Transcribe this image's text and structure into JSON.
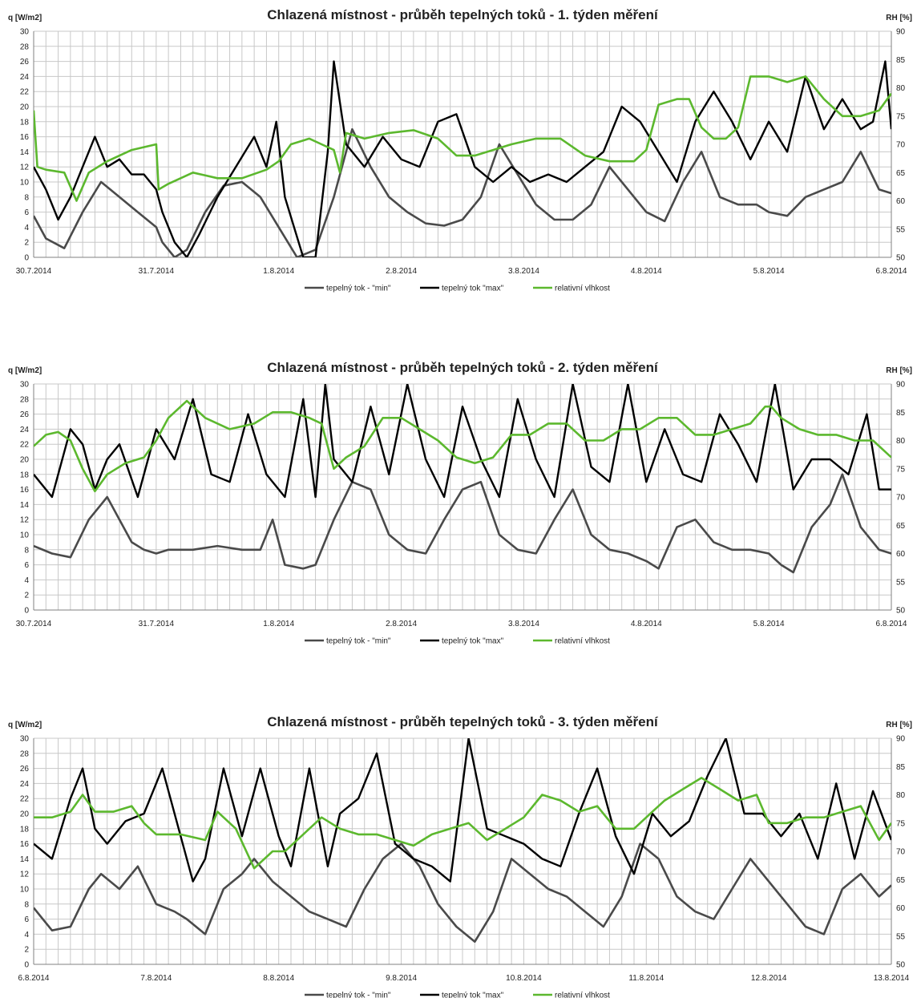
{
  "charts_meta": {
    "colors": {
      "min": "#4a4a4a",
      "max": "#000000",
      "rh": "#5cb82e",
      "grid": "#c8c8c8"
    }
  },
  "chart_data": [
    {
      "type": "line",
      "title": "Chlazená místnost - průběh tepelných toků - 1. týden měření",
      "ylabel": "q [W/m2]",
      "y2label": "RH [%]",
      "ylim": [
        0,
        30
      ],
      "y2lim": [
        50,
        90
      ],
      "yticks": [
        "0",
        "2",
        "4",
        "6",
        "8",
        "10",
        "12",
        "14",
        "16",
        "18",
        "20",
        "22",
        "24",
        "26",
        "28",
        "30"
      ],
      "y2ticks": [
        "50",
        "55",
        "60",
        "65",
        "70",
        "75",
        "80",
        "85",
        "90"
      ],
      "xlim": [
        0,
        7
      ],
      "xticks": [
        "30.7.2014",
        "31.7.2014",
        "1.8.2014",
        "2.8.2014",
        "3.8.2014",
        "4.8.2014",
        "5.8.2014",
        "6.8.2014"
      ],
      "grid": true,
      "legend": "bottom",
      "series": [
        {
          "name": "tepelný tok - \"min\"",
          "axis": "left",
          "x": [
            0,
            0.1,
            0.25,
            0.4,
            0.55,
            0.7,
            0.85,
            1.0,
            1.05,
            1.15,
            1.25,
            1.4,
            1.55,
            1.7,
            1.85,
            2.0,
            2.15,
            2.3,
            2.45,
            2.6,
            2.75,
            2.9,
            3.05,
            3.2,
            3.35,
            3.5,
            3.65,
            3.8,
            3.95,
            4.1,
            4.25,
            4.4,
            4.55,
            4.7,
            4.85,
            5.0,
            5.15,
            5.3,
            5.45,
            5.6,
            5.75,
            5.9,
            6.0,
            6.15,
            6.3,
            6.45,
            6.6,
            6.75,
            6.9,
            7.0
          ],
          "y": [
            5.5,
            2.5,
            1.2,
            6,
            10,
            8,
            6,
            4,
            2,
            0,
            1,
            6,
            9.5,
            10,
            8,
            4,
            0,
            1,
            8,
            17,
            12,
            8,
            6,
            4.5,
            4.2,
            5,
            8,
            15,
            11,
            7,
            5,
            5,
            7,
            12,
            9,
            6,
            4.8,
            10,
            14,
            8,
            7,
            7,
            6,
            5.5,
            8,
            9,
            10,
            14,
            9,
            8.5
          ]
        },
        {
          "name": "tepelný tok \"max\"",
          "axis": "left",
          "x": [
            0,
            0.1,
            0.2,
            0.3,
            0.4,
            0.5,
            0.6,
            0.7,
            0.8,
            0.9,
            1.0,
            1.05,
            1.15,
            1.25,
            1.35,
            1.5,
            1.65,
            1.8,
            1.9,
            1.98,
            2.05,
            2.2,
            2.3,
            2.4,
            2.45,
            2.55,
            2.7,
            2.85,
            3.0,
            3.15,
            3.3,
            3.45,
            3.6,
            3.75,
            3.9,
            4.05,
            4.2,
            4.35,
            4.5,
            4.65,
            4.8,
            4.95,
            5.1,
            5.25,
            5.4,
            5.55,
            5.7,
            5.85,
            6.0,
            6.15,
            6.3,
            6.45,
            6.6,
            6.75,
            6.85,
            6.95,
            7.0
          ],
          "y": [
            12,
            9,
            5,
            8,
            12,
            16,
            12,
            13,
            11,
            11,
            9,
            6,
            2,
            0,
            3,
            8,
            12,
            16,
            12,
            18,
            8,
            0,
            0,
            14,
            26,
            15,
            12,
            16,
            13,
            12,
            18,
            19,
            12,
            10,
            12,
            10,
            11,
            10,
            12,
            14,
            20,
            18,
            14,
            10,
            18,
            22,
            18,
            13,
            18,
            14,
            24,
            17,
            21,
            17,
            18,
            26,
            17
          ]
        },
        {
          "name": "relativní vlhkost",
          "axis": "right",
          "x": [
            0,
            0.03,
            0.1,
            0.25,
            0.35,
            0.45,
            0.6,
            0.8,
            1.0,
            1.02,
            1.1,
            1.3,
            1.5,
            1.7,
            1.9,
            2.0,
            2.1,
            2.25,
            2.35,
            2.45,
            2.5,
            2.55,
            2.7,
            2.9,
            3.1,
            3.3,
            3.45,
            3.6,
            3.75,
            3.9,
            4.1,
            4.3,
            4.5,
            4.7,
            4.9,
            5.0,
            5.1,
            5.25,
            5.35,
            5.45,
            5.55,
            5.65,
            5.75,
            5.85,
            6.0,
            6.15,
            6.3,
            6.45,
            6.6,
            6.75,
            6.9,
            7.0
          ],
          "y": [
            76,
            66,
            65.5,
            65,
            60,
            65,
            67,
            69,
            70,
            62,
            63,
            65,
            64,
            64,
            65.5,
            67,
            70,
            71,
            70,
            69,
            65,
            72,
            71,
            72,
            72.5,
            71,
            68,
            68,
            69,
            70,
            71,
            71,
            68,
            67,
            67,
            69,
            77,
            78,
            78,
            73,
            71,
            71,
            73,
            82,
            82,
            81,
            82,
            78,
            75,
            75,
            76,
            79
          ]
        }
      ]
    },
    {
      "type": "line",
      "title": "Chlazená místnost - průběh tepelných toků - 2. týden měření",
      "ylabel": "q [W/m2]",
      "y2label": "RH [%]",
      "ylim": [
        0,
        30
      ],
      "y2lim": [
        50,
        90
      ],
      "yticks": [
        "0",
        "2",
        "4",
        "6",
        "8",
        "10",
        "12",
        "14",
        "16",
        "18",
        "20",
        "22",
        "24",
        "26",
        "28",
        "30"
      ],
      "y2ticks": [
        "50",
        "55",
        "60",
        "65",
        "70",
        "75",
        "80",
        "85",
        "90"
      ],
      "xlim": [
        0,
        7
      ],
      "xticks": [
        "30.7.2014",
        "31.7.2014",
        "1.8.2014",
        "2.8.2014",
        "3.8.2014",
        "4.8.2014",
        "5.8.2014",
        "6.8.2014"
      ],
      "grid": true,
      "legend": "bottom",
      "series": [
        {
          "name": "tepelný tok - \"min\"",
          "axis": "left",
          "x": [
            0,
            0.15,
            0.3,
            0.45,
            0.55,
            0.6,
            0.7,
            0.8,
            0.9,
            1.0,
            1.1,
            1.3,
            1.5,
            1.7,
            1.85,
            1.95,
            2.05,
            2.2,
            2.3,
            2.45,
            2.6,
            2.75,
            2.9,
            3.05,
            3.2,
            3.35,
            3.5,
            3.65,
            3.8,
            3.95,
            4.1,
            4.25,
            4.4,
            4.55,
            4.7,
            4.85,
            5.0,
            5.1,
            5.25,
            5.4,
            5.55,
            5.7,
            5.85,
            6.0,
            6.1,
            6.2,
            6.35,
            6.5,
            6.6,
            6.75,
            6.9,
            7.0
          ],
          "y": [
            8.5,
            7.5,
            7,
            12,
            14,
            15,
            12,
            9,
            8,
            7.5,
            8,
            8,
            8.5,
            8,
            8,
            12,
            6,
            5.5,
            6,
            12,
            17,
            16,
            10,
            8,
            7.5,
            12,
            16,
            17,
            10,
            8,
            7.5,
            12,
            16,
            10,
            8,
            7.5,
            6.5,
            5.5,
            11,
            12,
            9,
            8,
            8,
            7.5,
            6,
            5,
            11,
            14,
            18,
            11,
            8,
            7.5
          ]
        },
        {
          "name": "tepelný tok \"max\"",
          "axis": "left",
          "x": [
            0,
            0.15,
            0.3,
            0.4,
            0.5,
            0.6,
            0.7,
            0.85,
            1.0,
            1.15,
            1.3,
            1.45,
            1.6,
            1.75,
            1.9,
            2.05,
            2.2,
            2.3,
            2.38,
            2.45,
            2.6,
            2.75,
            2.9,
            3.05,
            3.2,
            3.35,
            3.5,
            3.65,
            3.8,
            3.95,
            4.1,
            4.25,
            4.4,
            4.55,
            4.7,
            4.85,
            5.0,
            5.15,
            5.3,
            5.45,
            5.6,
            5.75,
            5.9,
            6.05,
            6.2,
            6.35,
            6.5,
            6.65,
            6.8,
            6.9,
            7.0
          ],
          "y": [
            18,
            15,
            24,
            22,
            16,
            20,
            22,
            15,
            24,
            20,
            28,
            18,
            17,
            26,
            18,
            15,
            28,
            15,
            30,
            20,
            17,
            27,
            18,
            30,
            20,
            15,
            27,
            20,
            15,
            28,
            20,
            15,
            30,
            19,
            17,
            30,
            17,
            24,
            18,
            17,
            26,
            22,
            17,
            30,
            16,
            20,
            20,
            18,
            26,
            16,
            16
          ]
        },
        {
          "name": "relativní vlhkost",
          "axis": "right",
          "x": [
            0,
            0.1,
            0.2,
            0.3,
            0.4,
            0.5,
            0.6,
            0.75,
            0.9,
            1.0,
            1.1,
            1.25,
            1.4,
            1.6,
            1.8,
            1.95,
            2.1,
            2.25,
            2.35,
            2.45,
            2.55,
            2.7,
            2.85,
            3.0,
            3.15,
            3.3,
            3.45,
            3.6,
            3.75,
            3.9,
            4.05,
            4.2,
            4.35,
            4.5,
            4.65,
            4.8,
            4.95,
            5.1,
            5.25,
            5.4,
            5.55,
            5.7,
            5.85,
            5.97,
            6.02,
            6.1,
            6.25,
            6.4,
            6.55,
            6.7,
            6.85,
            7.0
          ],
          "y": [
            79,
            81,
            81.5,
            80,
            75,
            71,
            74,
            76,
            77,
            80,
            84,
            87,
            84,
            82,
            83,
            85,
            85,
            84,
            83,
            75,
            77,
            79,
            84,
            84,
            82,
            80,
            77,
            76,
            77,
            81,
            81,
            83,
            83,
            80,
            80,
            82,
            82,
            84,
            84,
            81,
            81,
            82,
            83,
            86,
            86,
            84,
            82,
            81,
            81,
            80,
            80,
            77
          ]
        }
      ]
    },
    {
      "type": "line",
      "title": "Chlazená místnost - průběh tepelných toků - 3. týden měření",
      "ylabel": "q [W/m2]",
      "y2label": "RH [%]",
      "ylim": [
        0,
        30
      ],
      "y2lim": [
        50,
        90
      ],
      "yticks": [
        "0",
        "2",
        "4",
        "6",
        "8",
        "10",
        "12",
        "14",
        "16",
        "18",
        "20",
        "22",
        "24",
        "26",
        "28",
        "30"
      ],
      "y2ticks": [
        "50",
        "55",
        "60",
        "65",
        "70",
        "75",
        "80",
        "85",
        "90"
      ],
      "xlim": [
        0,
        7
      ],
      "xticks": [
        "6.8.2014",
        "7.8.2014",
        "8.8.2014",
        "9.8.2014",
        "10.8.2014",
        "11.8.2014",
        "12.8.2014",
        "13.8.2014"
      ],
      "grid": true,
      "legend": "bottom",
      "series": [
        {
          "name": "tepelný tok - \"min\"",
          "axis": "left",
          "x": [
            0,
            0.15,
            0.3,
            0.45,
            0.55,
            0.7,
            0.85,
            1.0,
            1.15,
            1.25,
            1.4,
            1.55,
            1.7,
            1.8,
            1.95,
            2.1,
            2.25,
            2.4,
            2.55,
            2.7,
            2.85,
            3.0,
            3.15,
            3.3,
            3.45,
            3.6,
            3.75,
            3.9,
            4.05,
            4.2,
            4.35,
            4.5,
            4.65,
            4.8,
            4.95,
            5.1,
            5.25,
            5.4,
            5.55,
            5.7,
            5.85,
            6.0,
            6.15,
            6.3,
            6.45,
            6.6,
            6.75,
            6.9,
            7.0
          ],
          "y": [
            7.5,
            4.5,
            5,
            10,
            12,
            10,
            13,
            8,
            7,
            6,
            4,
            10,
            12,
            14,
            11,
            9,
            7,
            6,
            5,
            10,
            14,
            16,
            13,
            8,
            5,
            3,
            7,
            14,
            12,
            10,
            9,
            7,
            5,
            9,
            16,
            14,
            9,
            7,
            6,
            10,
            14,
            11,
            8,
            5,
            4,
            10,
            12,
            9,
            10.5
          ]
        },
        {
          "name": "tepelný tok \"max\"",
          "axis": "left",
          "x": [
            0,
            0.15,
            0.3,
            0.4,
            0.5,
            0.6,
            0.75,
            0.9,
            1.05,
            1.2,
            1.3,
            1.4,
            1.55,
            1.7,
            1.85,
            2.0,
            2.1,
            2.25,
            2.4,
            2.5,
            2.65,
            2.8,
            2.95,
            3.1,
            3.25,
            3.4,
            3.55,
            3.7,
            3.85,
            4.0,
            4.15,
            4.3,
            4.45,
            4.6,
            4.75,
            4.9,
            5.05,
            5.2,
            5.35,
            5.5,
            5.65,
            5.8,
            5.95,
            6.1,
            6.25,
            6.4,
            6.55,
            6.7,
            6.85,
            7.0
          ],
          "y": [
            16,
            14,
            22,
            26,
            18,
            16,
            19,
            20,
            26,
            17,
            11,
            14,
            26,
            17,
            26,
            17,
            13,
            26,
            13,
            20,
            22,
            28,
            16,
            14,
            13,
            11,
            30,
            18,
            17,
            16,
            14,
            13,
            20,
            26,
            17,
            12,
            20,
            17,
            19,
            25,
            30,
            20,
            20,
            17,
            20,
            14,
            24,
            14,
            23,
            16.5
          ]
        },
        {
          "name": "relativní vlhkost",
          "axis": "right",
          "x": [
            0,
            0.15,
            0.3,
            0.4,
            0.5,
            0.65,
            0.8,
            0.9,
            1.0,
            1.2,
            1.4,
            1.5,
            1.65,
            1.8,
            1.95,
            2.05,
            2.2,
            2.35,
            2.5,
            2.65,
            2.8,
            2.95,
            3.1,
            3.25,
            3.4,
            3.55,
            3.7,
            3.85,
            4.0,
            4.15,
            4.3,
            4.45,
            4.6,
            4.75,
            4.9,
            5.05,
            5.15,
            5.3,
            5.45,
            5.6,
            5.75,
            5.9,
            6.0,
            6.15,
            6.3,
            6.45,
            6.6,
            6.75,
            6.9,
            7.0
          ],
          "y": [
            76,
            76,
            77,
            80,
            77,
            77,
            78,
            75,
            73,
            73,
            72,
            77,
            74,
            67,
            70,
            70,
            73,
            76,
            74,
            73,
            73,
            72,
            71,
            73,
            74,
            75,
            72,
            74,
            76,
            80,
            79,
            77,
            78,
            74,
            74,
            77,
            79,
            81,
            83,
            81,
            79,
            80,
            75,
            75,
            76,
            76,
            77,
            78,
            72,
            75
          ]
        }
      ]
    }
  ]
}
